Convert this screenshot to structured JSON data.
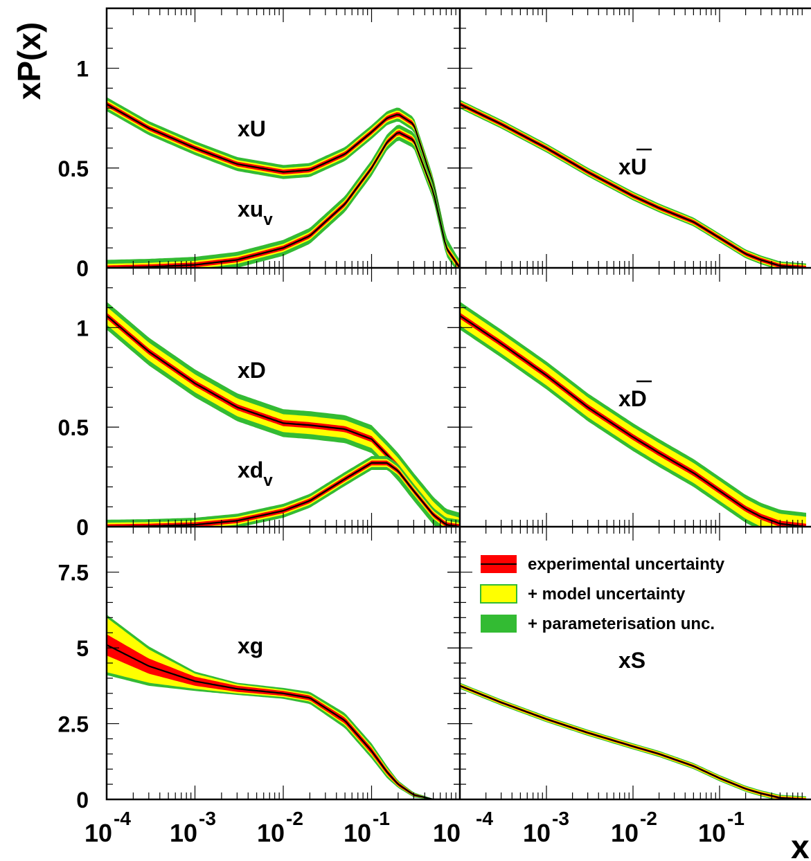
{
  "figure": {
    "ylabel": "xP(x)",
    "xlabel": "x",
    "tick_base": "10",
    "x_exponents": [
      "-4",
      "-3",
      "-2",
      "-1"
    ],
    "x_scale": "log",
    "xlim": [
      0.0001,
      1
    ],
    "colors": {
      "experimental": "#ff0000",
      "model": "#ffff00",
      "parameterisation": "#33bb33",
      "central": "#000000"
    }
  },
  "legend": {
    "items": [
      {
        "label": "experimental uncertainty",
        "color": "#ff0000",
        "has_line": true
      },
      {
        "label": "+ model uncertainty",
        "color": "#ffff00",
        "has_line": false
      },
      {
        "label": "+ parameterisation unc.",
        "color": "#33bb33",
        "has_line": false
      }
    ]
  },
  "chart_data": [
    {
      "type": "line",
      "panel": "top-left",
      "ylim": [
        0,
        1.3
      ],
      "yticks": [
        "0",
        "0.5",
        "1"
      ],
      "ytick_values": [
        0,
        0.5,
        1
      ],
      "series": [
        {
          "name": "xU",
          "label_main": "xU",
          "label_sub": "",
          "bar": false,
          "x": [
            0.0001,
            0.0003,
            0.001,
            0.003,
            0.01,
            0.02,
            0.05,
            0.1,
            0.15,
            0.2,
            0.3,
            0.5,
            0.7,
            1
          ],
          "y": [
            0.82,
            0.7,
            0.6,
            0.52,
            0.48,
            0.49,
            0.57,
            0.68,
            0.75,
            0.77,
            0.72,
            0.42,
            0.12,
            0.0
          ],
          "bands": {
            "exp": 0.012,
            "model": 0.02,
            "param": 0.035
          }
        },
        {
          "name": "xu_v",
          "label_main": "xu",
          "label_sub": "v",
          "bar": false,
          "x": [
            0.0001,
            0.0003,
            0.001,
            0.003,
            0.01,
            0.02,
            0.05,
            0.1,
            0.15,
            0.2,
            0.3,
            0.5,
            0.7,
            1
          ],
          "y": [
            0.0,
            0.005,
            0.015,
            0.04,
            0.1,
            0.16,
            0.32,
            0.5,
            0.63,
            0.68,
            0.64,
            0.38,
            0.1,
            0.0
          ],
          "bands": {
            "exp": 0.012,
            "model": 0.02,
            "param": 0.04
          }
        }
      ]
    },
    {
      "type": "line",
      "panel": "top-right",
      "ylim": [
        0,
        1.3
      ],
      "yticks": [],
      "ytick_values": [
        0,
        0.5,
        1
      ],
      "series": [
        {
          "name": "xU-bar",
          "label_main": "xU",
          "label_sub": "",
          "bar": true,
          "x": [
            0.0001,
            0.0003,
            0.001,
            0.003,
            0.01,
            0.02,
            0.05,
            0.1,
            0.2,
            0.3,
            0.5,
            1
          ],
          "y": [
            0.82,
            0.72,
            0.6,
            0.48,
            0.36,
            0.3,
            0.23,
            0.15,
            0.07,
            0.04,
            0.01,
            0.0
          ],
          "bands": {
            "exp": 0.01,
            "model": 0.015,
            "param": 0.022
          }
        }
      ]
    },
    {
      "type": "line",
      "panel": "middle-left",
      "ylim": [
        0,
        1.3
      ],
      "yticks": [
        "0",
        "0.5",
        "1"
      ],
      "ytick_values": [
        0,
        0.5,
        1
      ],
      "series": [
        {
          "name": "xD",
          "label_main": "xD",
          "label_sub": "",
          "bar": false,
          "x": [
            0.0001,
            0.0003,
            0.001,
            0.003,
            0.01,
            0.02,
            0.05,
            0.1,
            0.15,
            0.2,
            0.3,
            0.5,
            0.7,
            1
          ],
          "y": [
            1.06,
            0.88,
            0.72,
            0.6,
            0.52,
            0.51,
            0.49,
            0.44,
            0.36,
            0.3,
            0.2,
            0.08,
            0.02,
            0.0
          ],
          "bands": {
            "exp": 0.015,
            "model": 0.045,
            "param": 0.07
          }
        },
        {
          "name": "xd_v",
          "label_main": "xd",
          "label_sub": "v",
          "bar": false,
          "x": [
            0.0001,
            0.0003,
            0.001,
            0.003,
            0.01,
            0.02,
            0.05,
            0.1,
            0.15,
            0.2,
            0.3,
            0.5,
            0.7,
            1
          ],
          "y": [
            0.0,
            0.003,
            0.01,
            0.03,
            0.08,
            0.13,
            0.24,
            0.32,
            0.32,
            0.28,
            0.18,
            0.06,
            0.01,
            0.0
          ],
          "bands": {
            "exp": 0.012,
            "model": 0.02,
            "param": 0.035
          }
        }
      ]
    },
    {
      "type": "line",
      "panel": "middle-right",
      "ylim": [
        0,
        1.3
      ],
      "yticks": [],
      "ytick_values": [
        0,
        0.5,
        1
      ],
      "series": [
        {
          "name": "xD-bar",
          "label_main": "xD",
          "label_sub": "",
          "bar": true,
          "x": [
            0.0001,
            0.0003,
            0.001,
            0.003,
            0.01,
            0.02,
            0.05,
            0.1,
            0.2,
            0.3,
            0.5,
            1
          ],
          "y": [
            1.06,
            0.92,
            0.76,
            0.6,
            0.45,
            0.37,
            0.27,
            0.18,
            0.09,
            0.05,
            0.015,
            0.0
          ],
          "bands": {
            "exp": 0.015,
            "model": 0.05,
            "param": 0.07
          }
        }
      ]
    },
    {
      "type": "line",
      "panel": "bottom-left",
      "ylim": [
        0,
        9
      ],
      "yticks": [
        "0",
        "2.5",
        "5",
        "7.5"
      ],
      "ytick_values": [
        0,
        2.5,
        5,
        7.5
      ],
      "series": [
        {
          "name": "xg",
          "label_main": "xg",
          "label_sub": "",
          "bar": false,
          "x": [
            0.0001,
            0.0003,
            0.001,
            0.003,
            0.01,
            0.02,
            0.05,
            0.1,
            0.15,
            0.2,
            0.3,
            0.5,
            1
          ],
          "y": [
            5.1,
            4.4,
            3.9,
            3.65,
            3.5,
            3.35,
            2.6,
            1.6,
            0.9,
            0.5,
            0.15,
            0.0,
            0.0
          ],
          "bands": {
            "exp": [
              0.35,
              0.25,
              0.15,
              0.1,
              0.08,
              0.08,
              0.1,
              0.1,
              0.08,
              0.06,
              0.04,
              0.01,
              0.0
            ],
            "model": [
              0.9,
              0.55,
              0.25,
              0.15,
              0.12,
              0.12,
              0.15,
              0.15,
              0.12,
              0.08,
              0.05,
              0.01,
              0.0
            ],
            "param": [
              1.0,
              0.65,
              0.32,
              0.2,
              0.18,
              0.2,
              0.25,
              0.25,
              0.2,
              0.12,
              0.08,
              0.02,
              0.0
            ]
          }
        }
      ]
    },
    {
      "type": "line",
      "panel": "bottom-right",
      "ylim": [
        0,
        9
      ],
      "yticks": [],
      "ytick_values": [
        0,
        2.5,
        5,
        7.5
      ],
      "series": [
        {
          "name": "xS",
          "label_main": "xS",
          "label_sub": "",
          "bar": false,
          "x": [
            0.0001,
            0.0003,
            0.001,
            0.003,
            0.01,
            0.02,
            0.05,
            0.1,
            0.2,
            0.3,
            0.5,
            1
          ],
          "y": [
            3.75,
            3.2,
            2.65,
            2.2,
            1.75,
            1.5,
            1.1,
            0.7,
            0.35,
            0.2,
            0.05,
            0.0
          ],
          "bands": {
            "exp": 0.04,
            "model": 0.07,
            "param": 0.1
          }
        }
      ]
    }
  ]
}
